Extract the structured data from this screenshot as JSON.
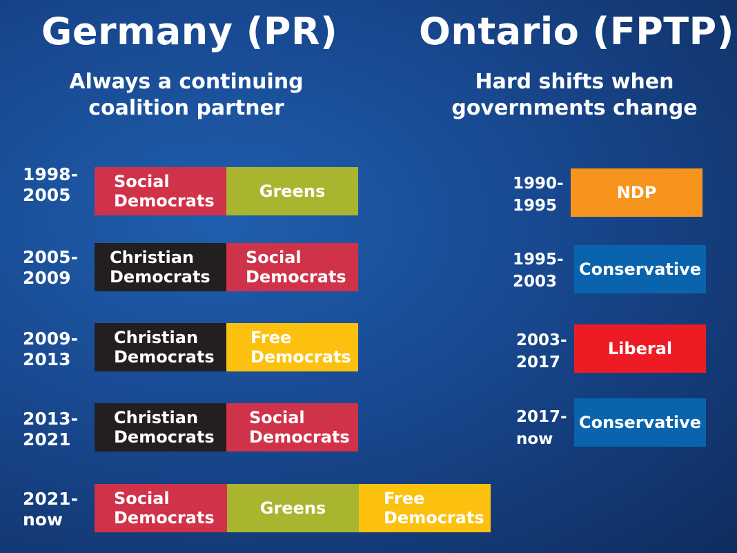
{
  "colors": {
    "social_democrats": "#d0324a",
    "greens": "#aab52f",
    "christian_democrats": "#231f20",
    "free_democrats": "#fcc10f",
    "ndp": "#f7941d",
    "conservative": "#0a64ad",
    "liberal": "#ed1c24"
  },
  "germany": {
    "title": "Germany (PR)",
    "subtitle": "Always a continuing coalition partner",
    "rows": [
      {
        "years": "1998-\n2005",
        "parties": [
          {
            "label": "Social\nDemocrats",
            "color": "#d0324a"
          },
          {
            "label": "Greens",
            "color": "#aab52f"
          }
        ]
      },
      {
        "years": "2005-\n2009",
        "parties": [
          {
            "label": "Christian\nDemocrats",
            "color": "#231f20"
          },
          {
            "label": "Social\nDemocrats",
            "color": "#d0324a"
          }
        ]
      },
      {
        "years": "2009-\n2013",
        "parties": [
          {
            "label": "Christian\nDemocrats",
            "color": "#231f20"
          },
          {
            "label": "Free\nDemocrats",
            "color": "#fcc10f"
          }
        ]
      },
      {
        "years": "2013-\n2021",
        "parties": [
          {
            "label": "Christian\nDemocrats",
            "color": "#231f20"
          },
          {
            "label": "Social\nDemocrats",
            "color": "#d0324a"
          }
        ]
      },
      {
        "years": "2021-\nnow",
        "parties": [
          {
            "label": "Social\nDemocrats",
            "color": "#d0324a"
          },
          {
            "label": "Greens",
            "color": "#aab52f"
          },
          {
            "label": "Free\nDemocrats",
            "color": "#fcc10f"
          }
        ]
      }
    ]
  },
  "ontario": {
    "title": "Ontario (FPTP)",
    "subtitle": "Hard shifts when governments change",
    "rows": [
      {
        "years": "1990-\n1995",
        "party": {
          "label": "NDP",
          "color": "#f7941d"
        }
      },
      {
        "years": "1995-\n2003",
        "party": {
          "label": "Conservative",
          "color": "#0a64ad"
        }
      },
      {
        "years": "2003-\n2017",
        "party": {
          "label": "Liberal",
          "color": "#ed1c24"
        }
      },
      {
        "years": "2017-\nnow",
        "party": {
          "label": "Conservative",
          "color": "#0a64ad"
        }
      }
    ]
  }
}
